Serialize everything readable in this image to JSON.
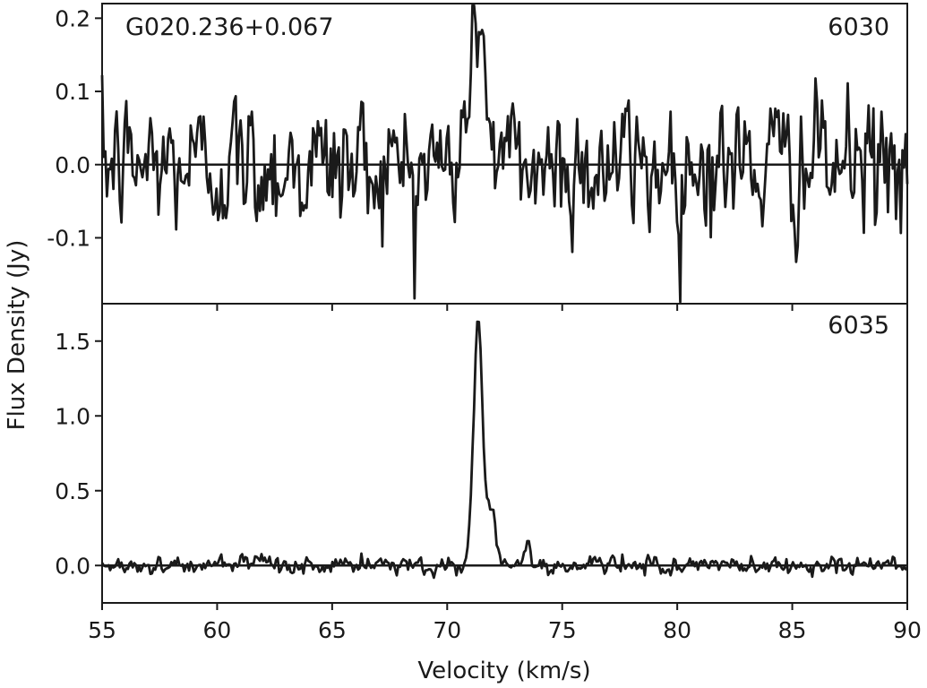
{
  "chart_data": {
    "type": "line",
    "shared_x": true,
    "xlabel": "Velocity (km/s)",
    "ylabel": "Flux Density (Jy)",
    "xlim": [
      55,
      90
    ],
    "xticks": [
      55,
      60,
      65,
      70,
      75,
      80,
      85,
      90
    ],
    "grid": false,
    "line_color": "#1a1a1a",
    "panels": [
      {
        "source_label": "G020.236+0.067",
        "transition_label": "6030",
        "ylim": [
          -0.19,
          0.22
        ],
        "yticks": [
          {
            "value": 0.2,
            "label": "0.2"
          },
          {
            "value": 0.1,
            "label": "0.1"
          },
          {
            "value": 0.0,
            "label": "0.0"
          },
          {
            "value": -0.1,
            "label": "-0.1"
          }
        ],
        "baseline": 0.0,
        "series": [
          {
            "noise_rms": 0.055,
            "features": [
              {
                "center": 71.2,
                "peak": 0.19,
                "width": 0.25
              },
              {
                "center": 71.6,
                "peak": 0.08,
                "width": 0.3
              }
            ]
          }
        ]
      },
      {
        "source_label": "",
        "transition_label": "6035",
        "ylim": [
          -0.25,
          1.75
        ],
        "yticks": [
          {
            "value": 1.5,
            "label": "1.5"
          },
          {
            "value": 1.0,
            "label": "1.0"
          },
          {
            "value": 0.5,
            "label": "0.5"
          },
          {
            "value": 0.0,
            "label": "0.0"
          }
        ],
        "baseline": 0.0,
        "series": [
          {
            "noise_rms": 0.035,
            "features": [
              {
                "center": 71.35,
                "peak": 1.63,
                "width": 0.2
              },
              {
                "center": 71.95,
                "peak": 0.35,
                "width": 0.18
              },
              {
                "center": 73.5,
                "peak": 0.2,
                "width": 0.1
              }
            ]
          }
        ]
      }
    ]
  }
}
